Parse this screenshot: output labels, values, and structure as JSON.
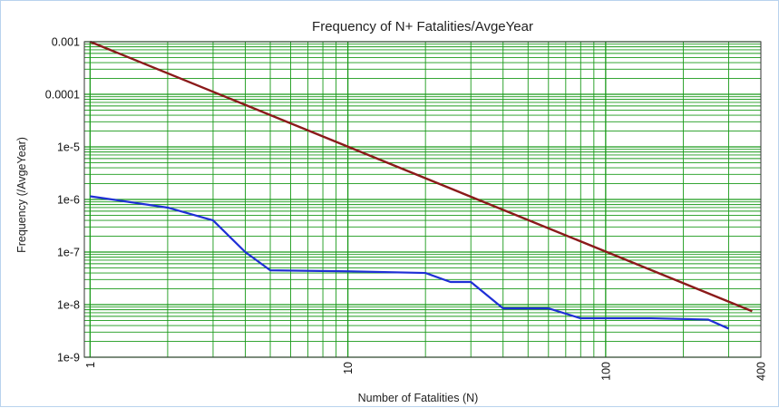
{
  "chart_data": {
    "type": "line",
    "title": "Frequency of N+ Fatalities/AvgeYear",
    "xlabel": "Number of Fatalities (N)",
    "ylabel": "Frequency (/AvgeYear)",
    "x_scale": "log",
    "y_scale": "log",
    "xlim": [
      0.95,
      400
    ],
    "ylim": [
      1e-09,
      0.001
    ],
    "grid": true,
    "x_ticks": [
      {
        "value": 1,
        "label": "1"
      },
      {
        "value": 10,
        "label": "10"
      },
      {
        "value": 100,
        "label": "100"
      },
      {
        "value": 400,
        "label": "400"
      }
    ],
    "y_ticks": [
      {
        "value": 0.001,
        "label": "0.001"
      },
      {
        "value": 0.0001,
        "label": "0.0001"
      },
      {
        "value": 1e-05,
        "label": "1e-5"
      },
      {
        "value": 1e-06,
        "label": "1e-6"
      },
      {
        "value": 1e-07,
        "label": "1e-7"
      },
      {
        "value": 1e-08,
        "label": "1e-8"
      },
      {
        "value": 1e-09,
        "label": "1e-9"
      }
    ],
    "series": [
      {
        "color": "#8b1a1a",
        "points": [
          [
            1,
            0.001
          ],
          [
            370,
            7.5e-09
          ]
        ]
      },
      {
        "color": "#1f2fd6",
        "points": [
          [
            1,
            1.15e-06
          ],
          [
            2,
            7e-07
          ],
          [
            3,
            4e-07
          ],
          [
            4,
            1e-07
          ],
          [
            5,
            4.5e-08
          ],
          [
            10,
            4.3e-08
          ],
          [
            20,
            4e-08
          ],
          [
            25,
            2.7e-08
          ],
          [
            30,
            2.7e-08
          ],
          [
            40,
            8.5e-09
          ],
          [
            60,
            8.5e-09
          ],
          [
            80,
            5.5e-09
          ],
          [
            100,
            5.5e-09
          ],
          [
            150,
            5.5e-09
          ],
          [
            250,
            5.2e-09
          ],
          [
            300,
            3.5e-09
          ]
        ]
      }
    ],
    "colors": {
      "grid": "#1a9a1a",
      "axis": "#333333"
    }
  }
}
